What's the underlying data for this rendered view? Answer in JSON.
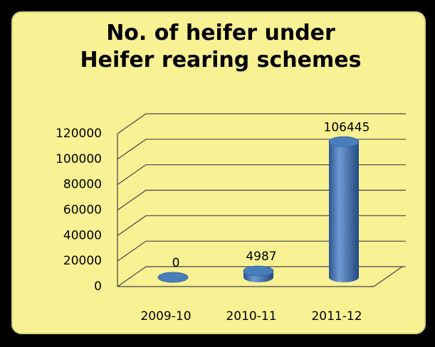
{
  "chart_data": {
    "type": "bar",
    "title": "No. of heifer under Heifer rearing schemes",
    "categories": [
      "2009-10",
      "2010-11",
      "2011-12"
    ],
    "values": [
      0,
      4987,
      106445
    ],
    "color": "#4a7ebb",
    "ylim": [
      0,
      120000
    ],
    "yticks": [
      0,
      20000,
      40000,
      60000,
      80000,
      100000,
      120000
    ],
    "grid": true
  }
}
